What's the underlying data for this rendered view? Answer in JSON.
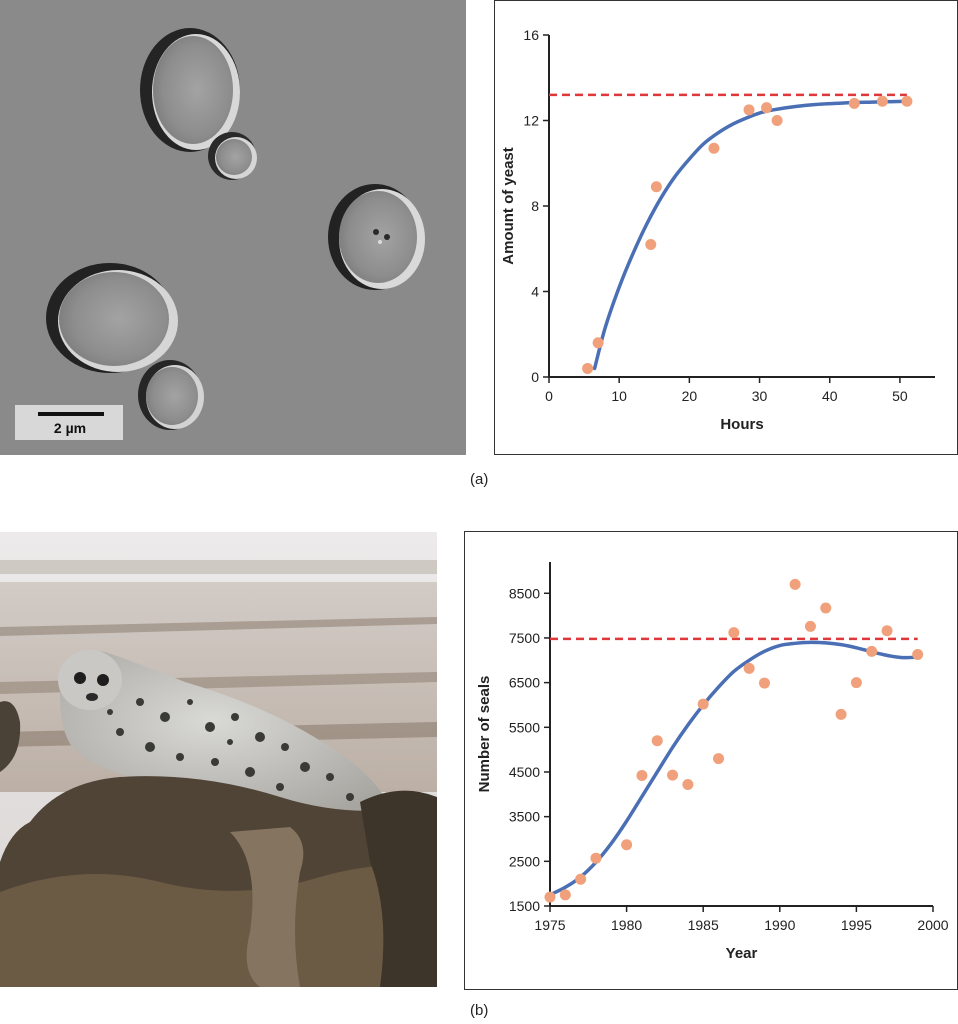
{
  "panels": {
    "a": {
      "label": "(a)",
      "photo": {
        "scale_bar_text": "2 µm"
      }
    },
    "b": {
      "label": "(b)"
    }
  },
  "colors": {
    "curve": "#4a6fb5",
    "points": "#f0a07a",
    "capacity_line": "#e0383a",
    "axis": "#222222"
  },
  "chart_data": [
    {
      "type": "scatter",
      "xlabel": "Hours",
      "ylabel": "Amount of yeast",
      "xlim": [
        0,
        55
      ],
      "ylim": [
        0,
        16
      ],
      "x_ticks": [
        0,
        10,
        20,
        30,
        40,
        50
      ],
      "y_ticks": [
        0,
        4,
        8,
        12,
        16
      ],
      "points": [
        {
          "x": 5.5,
          "y": 0.4
        },
        {
          "x": 7,
          "y": 1.6
        },
        {
          "x": 14.5,
          "y": 6.2
        },
        {
          "x": 15.3,
          "y": 8.9
        },
        {
          "x": 23.5,
          "y": 10.7
        },
        {
          "x": 28.5,
          "y": 12.5
        },
        {
          "x": 31,
          "y": 12.6
        },
        {
          "x": 32.5,
          "y": 12.0
        },
        {
          "x": 43.5,
          "y": 12.8
        },
        {
          "x": 47.5,
          "y": 12.9
        },
        {
          "x": 51,
          "y": 12.9
        }
      ],
      "fit_curve": [
        {
          "x": 6.5,
          "y": 0.4
        },
        {
          "x": 8,
          "y": 2.3
        },
        {
          "x": 10,
          "y": 4.2
        },
        {
          "x": 12,
          "y": 5.8
        },
        {
          "x": 14,
          "y": 7.2
        },
        {
          "x": 16,
          "y": 8.4
        },
        {
          "x": 18,
          "y": 9.4
        },
        {
          "x": 20,
          "y": 10.2
        },
        {
          "x": 22,
          "y": 10.9
        },
        {
          "x": 24,
          "y": 11.4
        },
        {
          "x": 26,
          "y": 11.8
        },
        {
          "x": 28,
          "y": 12.1
        },
        {
          "x": 30,
          "y": 12.35
        },
        {
          "x": 32,
          "y": 12.5
        },
        {
          "x": 35,
          "y": 12.65
        },
        {
          "x": 38,
          "y": 12.75
        },
        {
          "x": 42,
          "y": 12.82
        },
        {
          "x": 46,
          "y": 12.86
        },
        {
          "x": 51,
          "y": 12.9
        }
      ],
      "carrying_capacity": 13.2,
      "capacity_xrange": [
        0,
        51
      ]
    },
    {
      "type": "scatter",
      "xlabel": "Year",
      "ylabel": "Number of seals",
      "xlim": [
        1975,
        2000
      ],
      "ylim": [
        1500,
        9200
      ],
      "x_ticks": [
        1975,
        1980,
        1985,
        1990,
        1995,
        2000
      ],
      "y_ticks": [
        1500,
        2500,
        3500,
        4500,
        5500,
        6500,
        7500,
        8500
      ],
      "points": [
        {
          "x": 1975,
          "y": 1700
        },
        {
          "x": 1976,
          "y": 1750
        },
        {
          "x": 1977,
          "y": 2100
        },
        {
          "x": 1978,
          "y": 2570
        },
        {
          "x": 1980,
          "y": 2870
        },
        {
          "x": 1981,
          "y": 4420
        },
        {
          "x": 1982,
          "y": 5200
        },
        {
          "x": 1983,
          "y": 4430
        },
        {
          "x": 1984,
          "y": 4220
        },
        {
          "x": 1985,
          "y": 6020
        },
        {
          "x": 1986,
          "y": 4800
        },
        {
          "x": 1987,
          "y": 7620
        },
        {
          "x": 1988,
          "y": 6820
        },
        {
          "x": 1989,
          "y": 6490
        },
        {
          "x": 1991,
          "y": 8700
        },
        {
          "x": 1992,
          "y": 7760
        },
        {
          "x": 1993,
          "y": 8170
        },
        {
          "x": 1994,
          "y": 5790
        },
        {
          "x": 1995,
          "y": 6500
        },
        {
          "x": 1996,
          "y": 7200
        },
        {
          "x": 1997,
          "y": 7660
        },
        {
          "x": 1999,
          "y": 7130
        }
      ],
      "fit_curve": [
        {
          "x": 1975,
          "y": 1750
        },
        {
          "x": 1976,
          "y": 1920
        },
        {
          "x": 1977,
          "y": 2150
        },
        {
          "x": 1978,
          "y": 2480
        },
        {
          "x": 1979,
          "y": 2900
        },
        {
          "x": 1980,
          "y": 3400
        },
        {
          "x": 1981,
          "y": 3950
        },
        {
          "x": 1982,
          "y": 4500
        },
        {
          "x": 1983,
          "y": 5050
        },
        {
          "x": 1984,
          "y": 5550
        },
        {
          "x": 1985,
          "y": 6000
        },
        {
          "x": 1986,
          "y": 6400
        },
        {
          "x": 1987,
          "y": 6750
        },
        {
          "x": 1988,
          "y": 7000
        },
        {
          "x": 1989,
          "y": 7200
        },
        {
          "x": 1990,
          "y": 7330
        },
        {
          "x": 1991,
          "y": 7380
        },
        {
          "x": 1992,
          "y": 7400
        },
        {
          "x": 1993,
          "y": 7390
        },
        {
          "x": 1994,
          "y": 7350
        },
        {
          "x": 1995,
          "y": 7280
        },
        {
          "x": 1996,
          "y": 7190
        },
        {
          "x": 1997,
          "y": 7110
        },
        {
          "x": 1998,
          "y": 7060
        },
        {
          "x": 1999,
          "y": 7070
        }
      ],
      "carrying_capacity": 7480,
      "capacity_xrange": [
        1975,
        1999
      ]
    }
  ]
}
